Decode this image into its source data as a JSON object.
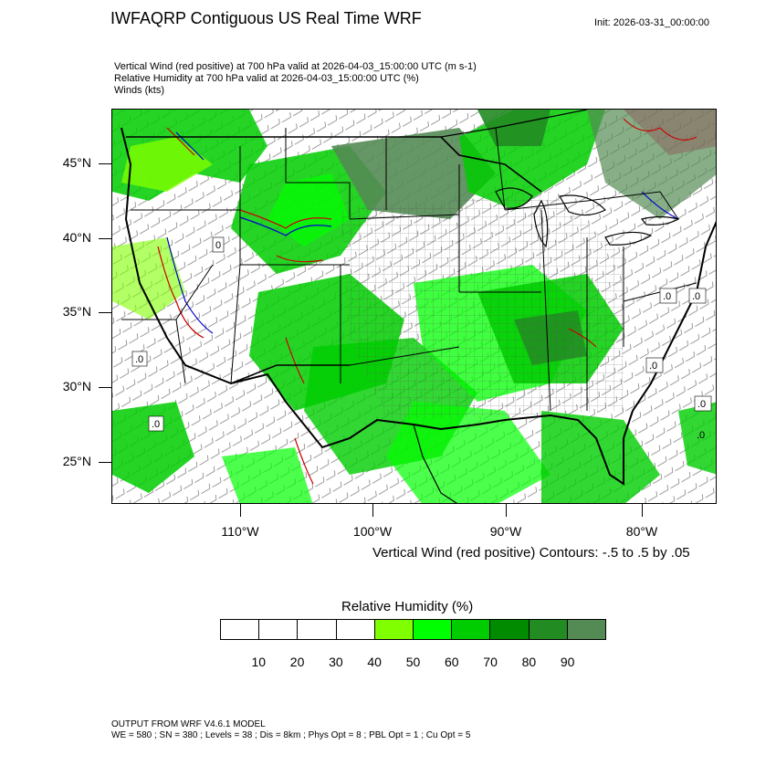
{
  "header": {
    "title": "IWFAQRP Contiguous US Real Time WRF",
    "init": "Init: 2026-03-31_00:00:00"
  },
  "subtitles": [
    "Vertical Wind (red positive) at 700 hPa valid at 2026-04-03_15:00:00 UTC   (m s-1)",
    "Relative Humidity at 700 hPa valid at 2026-04-03_15:00:00 UTC   (%)",
    "Winds   (kts)"
  ],
  "map": {
    "lat_labels": [
      "45°N",
      "40°N",
      "35°N",
      "30°N",
      "25°N"
    ],
    "lon_labels": [
      "110°W",
      "100°W",
      "90°W",
      "80°W"
    ],
    "contour_note": "Vertical Wind (red positive) Contours: -.5 to .5 by .05",
    "zero_labels": [
      ".0",
      ".0",
      "0",
      ".0",
      ".0",
      ".0",
      ".0",
      ".0"
    ]
  },
  "colorbar": {
    "title": "Relative Humidity  (%)",
    "colors": [
      "#ffffff",
      "#ffffff",
      "#ffffff",
      "#ffffff",
      "#80ff00",
      "#00ff00",
      "#00cd00",
      "#008b00",
      "#228b22",
      "#548b54"
    ],
    "labels": [
      "10",
      "20",
      "30",
      "40",
      "50",
      "60",
      "70",
      "80",
      "90"
    ]
  },
  "footer": {
    "line1": "OUTPUT FROM WRF V4.6.1 MODEL",
    "line2": "WE = 580 ; SN = 380 ; Levels = 38 ; Dis = 8km ; Phys Opt = 8 ; PBL Opt = 1 ; Cu Opt = 5"
  }
}
